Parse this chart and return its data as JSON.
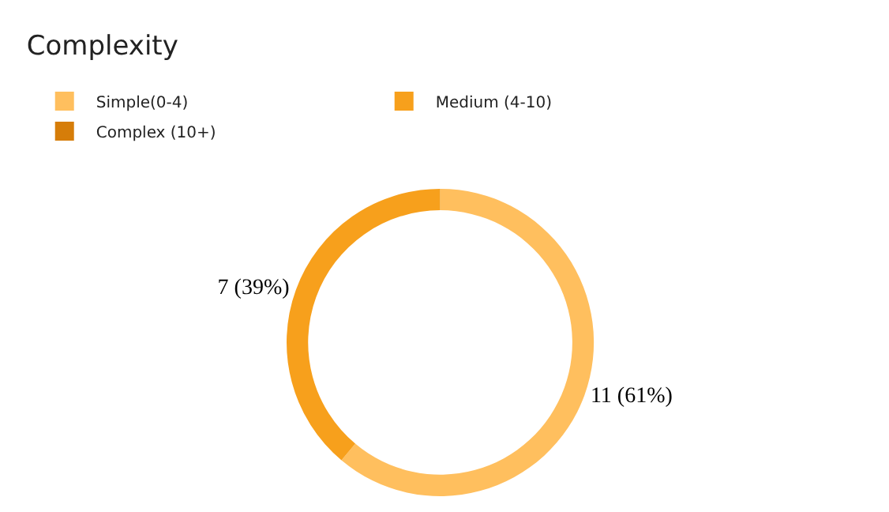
{
  "chart_data": {
    "type": "donut",
    "title": "Complexity",
    "categories": [
      "Simple(0-4)",
      "Medium (4-10)",
      "Complex (10+)"
    ],
    "values": [
      11,
      7,
      0
    ],
    "colors": [
      "#ffbf5e",
      "#f7a01c",
      "#d67d09"
    ],
    "value_labels": [
      "11 (61%)",
      "7 (39%)",
      null
    ],
    "legend": "top left"
  }
}
